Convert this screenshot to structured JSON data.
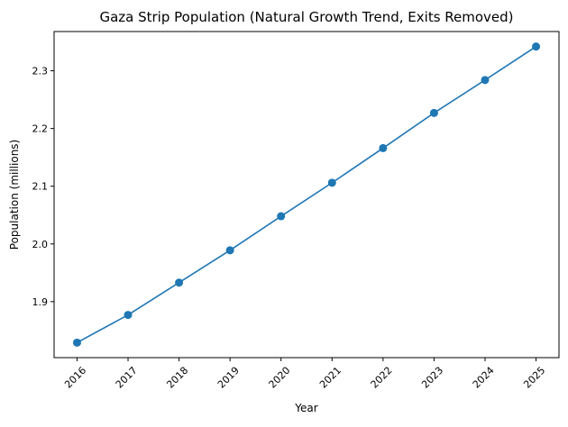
{
  "chart_data": {
    "type": "line",
    "title": "Gaza Strip Population (Natural Growth Trend, Exits Removed)",
    "xlabel": "Year",
    "ylabel": "Population (millions)",
    "x": [
      2016,
      2017,
      2018,
      2019,
      2020,
      2021,
      2022,
      2023,
      2024,
      2025
    ],
    "series": [
      {
        "values": [
          1.829,
          1.877,
          1.933,
          1.989,
          2.048,
          2.106,
          2.166,
          2.227,
          2.284,
          2.342
        ],
        "color": "#1f77b4",
        "marker": "circle"
      }
    ],
    "xticks": [
      "2016",
      "2017",
      "2018",
      "2019",
      "2020",
      "2021",
      "2022",
      "2023",
      "2024",
      "2025"
    ],
    "xtick_rotation_deg": 45,
    "yticks": [
      "1.9",
      "2.0",
      "2.1",
      "2.2",
      "2.3"
    ],
    "ylim": [
      1.803,
      2.368
    ],
    "grid": false,
    "legend": "none"
  }
}
